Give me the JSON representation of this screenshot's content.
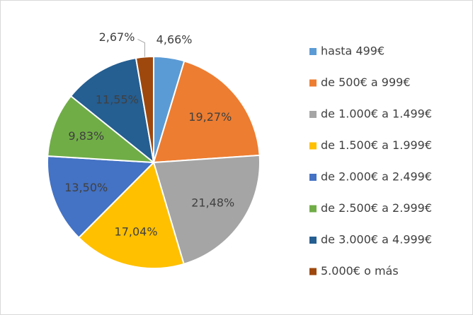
{
  "chart_data": {
    "type": "pie",
    "categories": [
      "hasta 499€",
      "de 500€ a 999€",
      "de 1.000€ a 1.499€",
      "de 1.500€ a 1.999€",
      "de 2.000€ a 2.499€",
      "de 2.500€ a 2.999€",
      "de 3.000€ a 4.999€",
      "5.000€ o más"
    ],
    "values": [
      4.66,
      19.27,
      21.48,
      17.04,
      13.5,
      9.83,
      11.55,
      2.67
    ],
    "value_labels": [
      "4,66%",
      "19,27%",
      "21,48%",
      "17,04%",
      "13,50%",
      "9,83%",
      "11,55%",
      "2,67%"
    ],
    "colors": [
      "#5b9bd5",
      "#ed7d31",
      "#a5a5a5",
      "#ffc000",
      "#4472c4",
      "#70ad47",
      "#255e91",
      "#9e480e"
    ],
    "legend": "right"
  }
}
